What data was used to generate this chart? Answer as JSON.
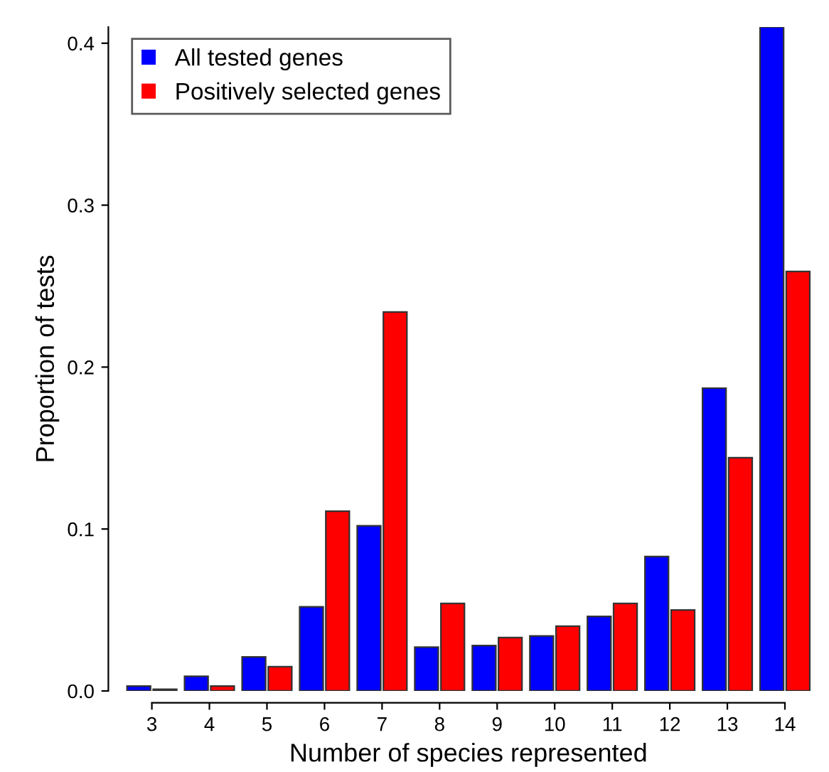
{
  "chart_data": {
    "type": "bar",
    "xlabel": "Number of species represented",
    "ylabel": "Proportion of tests",
    "categories": [
      "3",
      "4",
      "5",
      "6",
      "7",
      "8",
      "9",
      "10",
      "11",
      "12",
      "13",
      "14"
    ],
    "series": [
      {
        "name": "All tested genes",
        "color": "#0000ff",
        "values": [
          0.003,
          0.009,
          0.021,
          0.052,
          0.102,
          0.027,
          0.028,
          0.034,
          0.046,
          0.083,
          0.187,
          0.41
        ]
      },
      {
        "name": "Positively selected genes",
        "color": "#ff0000",
        "values": [
          0.001,
          0.003,
          0.015,
          0.111,
          0.234,
          0.054,
          0.033,
          0.04,
          0.054,
          0.05,
          0.144,
          0.259
        ]
      }
    ],
    "ylim": [
      0,
      0.41
    ],
    "yticks": [
      {
        "value": 0,
        "label": "0.0"
      },
      0.1,
      0.2,
      0.3,
      0.4
    ],
    "grid": false,
    "legend": "top left"
  }
}
